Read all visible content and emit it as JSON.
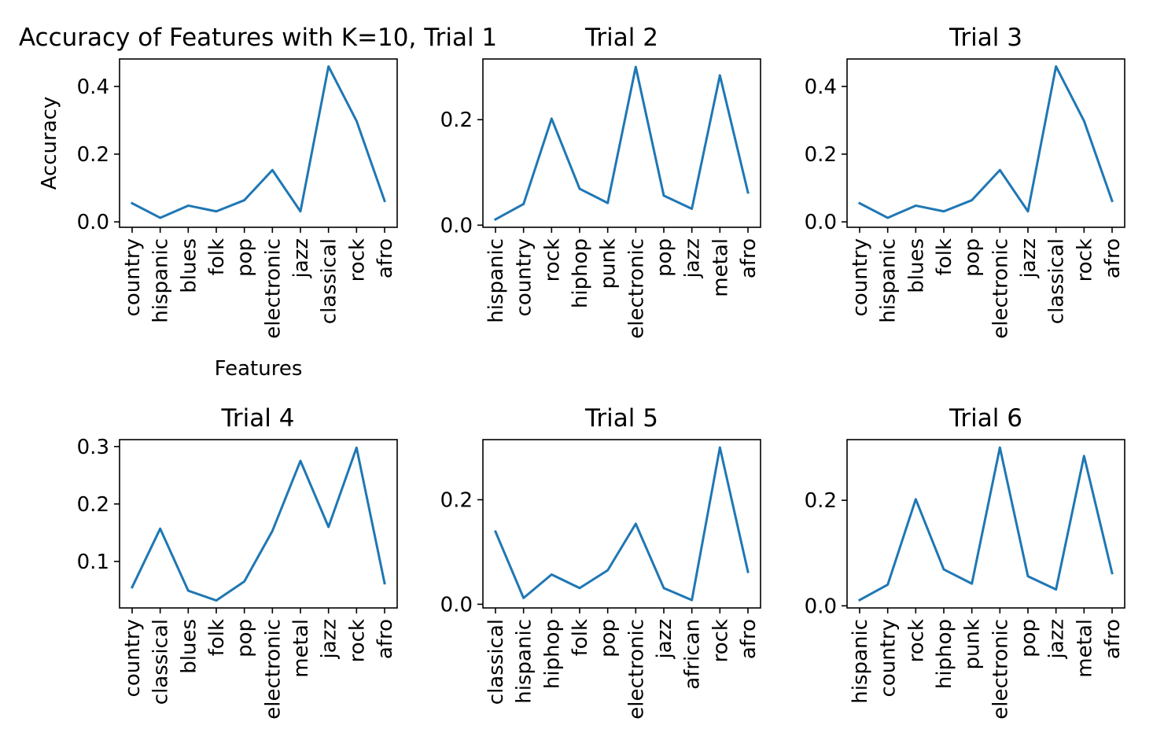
{
  "chart_data": [
    {
      "type": "line",
      "title": "Accuracy of Features with K=10, Trial 1",
      "xlabel": "Features",
      "ylabel": "Accuracy",
      "categories": [
        "country",
        "hispanic",
        "blues",
        "folk",
        "pop",
        "electronic",
        "jazz",
        "classical",
        "rock",
        "afro"
      ],
      "values": [
        0.055,
        0.012,
        0.048,
        0.031,
        0.064,
        0.153,
        0.031,
        0.459,
        0.298,
        0.062
      ],
      "ylim": [
        -0.016,
        0.481
      ],
      "yticks": [
        0.0,
        0.2,
        0.4
      ],
      "ytick_labels": [
        "0.0",
        "0.2",
        "0.4"
      ],
      "color": "#1f77b4"
    },
    {
      "type": "line",
      "title": "Trial 2",
      "xlabel": "",
      "ylabel": "",
      "categories": [
        "hispanic",
        "country",
        "rock",
        "hiphop",
        "punk",
        "electronic",
        "pop",
        "jazz",
        "metal",
        "afro"
      ],
      "values": [
        0.011,
        0.04,
        0.202,
        0.069,
        0.042,
        0.3,
        0.056,
        0.031,
        0.284,
        0.062
      ],
      "ylim": [
        -0.004,
        0.315
      ],
      "yticks": [
        0.0,
        0.2
      ],
      "ytick_labels": [
        "0.0",
        "0.2"
      ],
      "color": "#1f77b4"
    },
    {
      "type": "line",
      "title": "Trial 3",
      "xlabel": "",
      "ylabel": "",
      "categories": [
        "country",
        "hispanic",
        "blues",
        "folk",
        "pop",
        "electronic",
        "jazz",
        "classical",
        "rock",
        "afro"
      ],
      "values": [
        0.055,
        0.012,
        0.048,
        0.031,
        0.064,
        0.153,
        0.031,
        0.459,
        0.298,
        0.062
      ],
      "ylim": [
        -0.016,
        0.481
      ],
      "yticks": [
        0.0,
        0.2,
        0.4
      ],
      "ytick_labels": [
        "0.0",
        "0.2",
        "0.4"
      ],
      "color": "#1f77b4"
    },
    {
      "type": "line",
      "title": "Trial 4",
      "xlabel": "",
      "ylabel": "",
      "categories": [
        "country",
        "classical",
        "blues",
        "folk",
        "pop",
        "electronic",
        "metal",
        "jazz",
        "rock",
        "afro"
      ],
      "values": [
        0.055,
        0.157,
        0.049,
        0.032,
        0.065,
        0.153,
        0.275,
        0.16,
        0.298,
        0.062
      ],
      "ylim": [
        0.019,
        0.312
      ],
      "yticks": [
        0.1,
        0.2,
        0.3
      ],
      "ytick_labels": [
        "0.1",
        "0.2",
        "0.3"
      ],
      "color": "#1f77b4"
    },
    {
      "type": "line",
      "title": "Trial 5",
      "xlabel": "",
      "ylabel": "",
      "categories": [
        "classical",
        "hispanic",
        "hiphop",
        "folk",
        "pop",
        "electronic",
        "jazz",
        "african",
        "rock",
        "afro"
      ],
      "values": [
        0.139,
        0.012,
        0.057,
        0.031,
        0.065,
        0.154,
        0.031,
        0.008,
        0.3,
        0.062
      ],
      "ylim": [
        -0.007,
        0.315
      ],
      "yticks": [
        0.0,
        0.2
      ],
      "ytick_labels": [
        "0.0",
        "0.2"
      ],
      "color": "#1f77b4"
    },
    {
      "type": "line",
      "title": "Trial 6",
      "xlabel": "",
      "ylabel": "",
      "categories": [
        "hispanic",
        "country",
        "rock",
        "hiphop",
        "punk",
        "electronic",
        "pop",
        "jazz",
        "metal",
        "afro"
      ],
      "values": [
        0.011,
        0.04,
        0.202,
        0.069,
        0.042,
        0.3,
        0.056,
        0.031,
        0.284,
        0.062
      ],
      "ylim": [
        -0.004,
        0.315
      ],
      "yticks": [
        0.0,
        0.2
      ],
      "ytick_labels": [
        "0.0",
        "0.2"
      ],
      "color": "#1f77b4"
    }
  ]
}
